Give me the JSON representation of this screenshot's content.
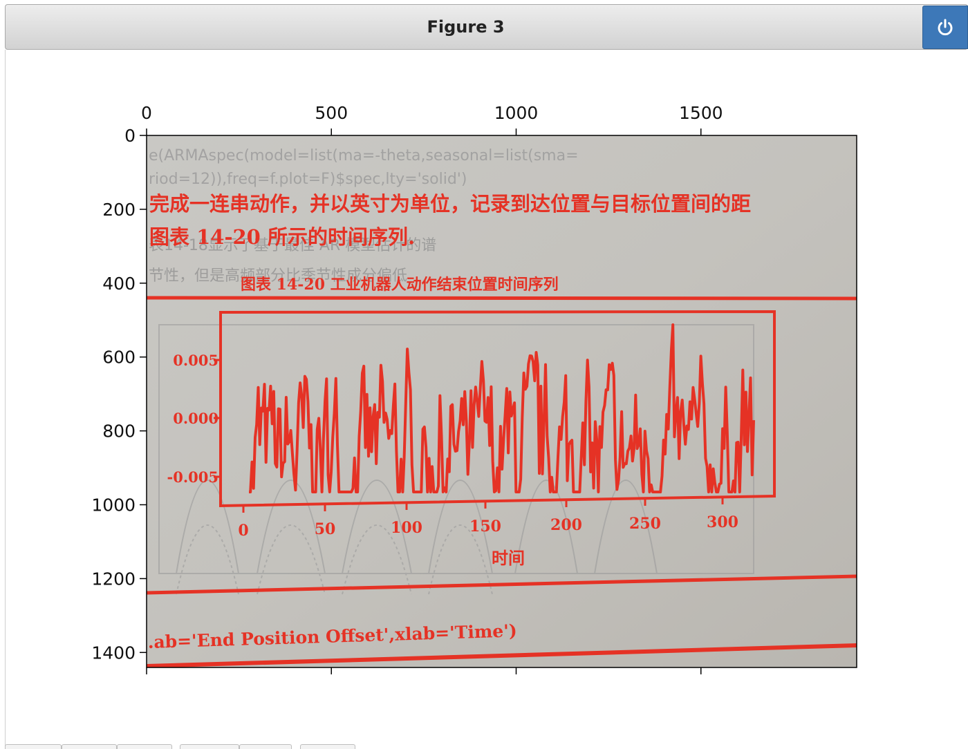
{
  "window": {
    "title": "Figure 3",
    "power_icon": "power-icon"
  },
  "colors": {
    "accent": "#3d78b8",
    "ink": "#e53225",
    "paper": "#c8c6c0"
  },
  "axes": {
    "x_ticks": [
      "0",
      "500",
      "1000",
      "1500"
    ],
    "y_ticks": [
      "0",
      "200",
      "400",
      "600",
      "800",
      "1000",
      "1200",
      "1400"
    ]
  },
  "photo": {
    "heading_line1": "完成一连串动作，并以英寸为单位，记录到达位置与目标位置间的距",
    "heading_line2": "图表 14-20 所示的时间序列.",
    "figure_caption": "图表 14-20  工业机器人动作结束位置时间序列",
    "code_line": ".ab='End Position Offset',xlab='Time')",
    "bg_text_1": "e(ARMAspec(model=list(ma=-theta,seasonal=list(sma=",
    "bg_text_2": "riod=12)),freq=f.plot=F)$spec,lty='solid')",
    "bg_text_3": "表14-18显示了基于最佳 AR 模型估计的谱",
    "bg_text_4": "节性，但是高频部分比季节性成分偏低",
    "inner_chart": {
      "y_ticks": [
        "0.005",
        "0.000",
        "-0.005"
      ],
      "x_ticks": [
        "0",
        "50",
        "100",
        "150",
        "200",
        "250",
        "300"
      ],
      "xlabel": "时间"
    }
  },
  "tabs": [
    "",
    "",
    "",
    "",
    "",
    ""
  ]
}
